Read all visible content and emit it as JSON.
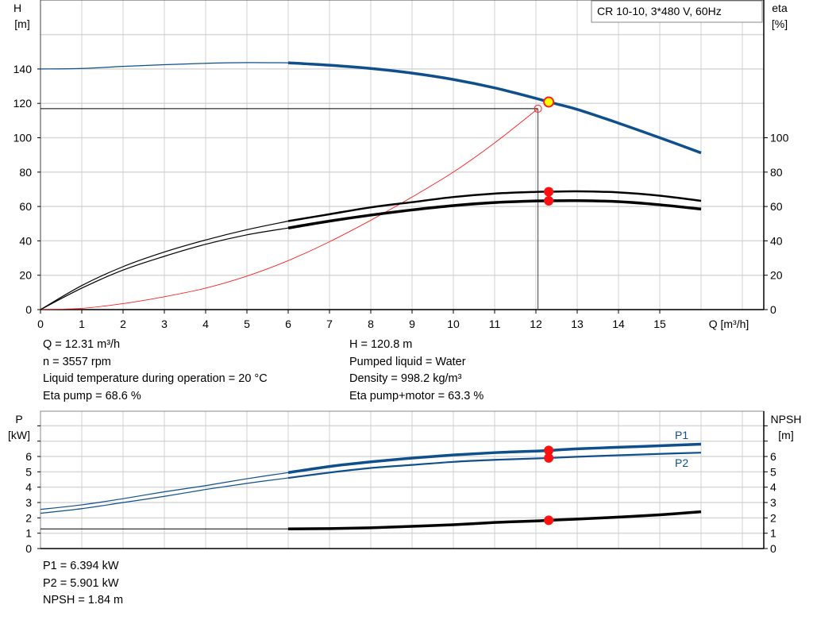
{
  "chart_data": [
    {
      "type": "line",
      "title": "CR 10-10, 3*480 V, 60Hz",
      "xlabel": "Q [m³/h]",
      "ylabel": "H\n[m]",
      "y2label": "eta\n[%]",
      "xlim": [
        0,
        17.5
      ],
      "ylim": [
        0,
        178
      ],
      "grid": true,
      "xticks": [
        0,
        1,
        2,
        3,
        4,
        5,
        6,
        7,
        8,
        9,
        10,
        11,
        12,
        13,
        14,
        15
      ],
      "yticks": [
        0,
        20,
        40,
        60,
        80,
        100,
        120,
        140
      ],
      "y2ticks": [
        0,
        20,
        40,
        60,
        80,
        100
      ],
      "series": [
        {
          "key": "H",
          "axis": "left",
          "color": "#0f4f8c",
          "x": [
            0,
            1,
            2,
            3,
            4,
            5,
            6,
            7,
            8,
            9,
            10,
            11,
            12,
            12.31,
            13,
            14,
            15,
            16
          ],
          "y": [
            140,
            140.3,
            141.5,
            142.5,
            143.3,
            143.7,
            143.6,
            142.2,
            140.3,
            137.6,
            133.9,
            129,
            122.9,
            120.8,
            116.5,
            108.5,
            100,
            91.2
          ]
        },
        {
          "key": "eta_pump",
          "axis": "right",
          "color": "#000000",
          "x": [
            0,
            1,
            2,
            3,
            4,
            5,
            6,
            7,
            8,
            9,
            10,
            11,
            12,
            12.31,
            13,
            14,
            15,
            16
          ],
          "y": [
            0,
            14,
            25,
            33.5,
            40.5,
            46.5,
            51.5,
            55.5,
            59.5,
            62.5,
            65.5,
            67.5,
            68.5,
            68.6,
            68.8,
            68.2,
            66.3,
            63.3
          ]
        },
        {
          "key": "eta_pump_motor",
          "axis": "right",
          "color": "#000000",
          "x": [
            0,
            1,
            2,
            3,
            4,
            5,
            6,
            7,
            8,
            9,
            10,
            11,
            12,
            12.31,
            13,
            14,
            15,
            16
          ],
          "y": [
            0,
            12.5,
            23,
            31,
            38,
            43.5,
            47.5,
            51.5,
            55,
            58,
            60.5,
            62.3,
            63.2,
            63.3,
            63.4,
            62.8,
            61,
            58.5
          ]
        },
        {
          "key": "system",
          "axis": "left",
          "color": "#ff2020",
          "x": [
            0,
            1,
            2,
            3,
            4,
            5,
            6,
            7,
            8,
            9,
            10,
            11,
            12.05
          ],
          "y": [
            0,
            0.7,
            3.5,
            7.5,
            12.5,
            19.5,
            28.5,
            39.5,
            52,
            65.5,
            80,
            97,
            116.9
          ]
        }
      ],
      "duty_point": {
        "Q": 12.31,
        "H": 120.8,
        "eta_pump": 68.6,
        "eta_pump_motor": 63.3
      },
      "system_point": {
        "Q": 12.05,
        "H": 116.9
      }
    },
    {
      "type": "line",
      "xlabel": "",
      "ylabel": "P\n[kW]",
      "y2label": "NPSH\n[m]",
      "xlim": [
        0,
        17.5
      ],
      "ylim": [
        0,
        8.9
      ],
      "grid": true,
      "yticks": [
        0,
        1,
        2,
        3,
        4,
        5,
        6
      ],
      "y2ticks": [
        0,
        1,
        2,
        3,
        4,
        5,
        6
      ],
      "series": [
        {
          "key": "P1",
          "name": "P1",
          "color": "#0f4f8c",
          "x": [
            0,
            1,
            2,
            3,
            4,
            5,
            6,
            7,
            8,
            9,
            10,
            11,
            12,
            12.31,
            13,
            14,
            15,
            16
          ],
          "y": [
            2.55,
            2.85,
            3.25,
            3.7,
            4.1,
            4.55,
            4.95,
            5.35,
            5.65,
            5.9,
            6.1,
            6.25,
            6.35,
            6.394,
            6.5,
            6.6,
            6.7,
            6.8
          ]
        },
        {
          "key": "P2",
          "name": "P2",
          "color": "#0f4f8c",
          "x": [
            0,
            1,
            2,
            3,
            4,
            5,
            6,
            7,
            8,
            9,
            10,
            11,
            12,
            12.31,
            13,
            14,
            15,
            16
          ],
          "y": [
            2.3,
            2.6,
            3.0,
            3.4,
            3.85,
            4.25,
            4.6,
            4.95,
            5.25,
            5.45,
            5.65,
            5.78,
            5.87,
            5.901,
            5.98,
            6.08,
            6.17,
            6.25
          ]
        },
        {
          "key": "NPSH",
          "color": "#000000",
          "x": [
            0,
            6,
            7,
            8,
            9,
            10,
            11,
            12,
            12.31,
            13,
            14,
            15,
            16
          ],
          "y": [
            1.28,
            1.28,
            1.3,
            1.35,
            1.45,
            1.55,
            1.7,
            1.8,
            1.84,
            1.92,
            2.05,
            2.2,
            2.4
          ]
        }
      ],
      "duty_point": {
        "Q": 12.31,
        "P1": 6.394,
        "P2": 5.901,
        "NPSH": 1.84
      }
    }
  ],
  "info_top_left": [
    "Q = 12.31 m³/h",
    "n = 3557 rpm",
    "Liquid temperature during operation = 20 °C",
    "Eta pump = 68.6 %"
  ],
  "info_top_right": [
    "H = 120.8 m",
    "Pumped liquid = Water",
    "Density = 998.2 kg/m³",
    "Eta pump+motor = 63.3 %"
  ],
  "info_bottom": [
    "P1 = 6.394 kW",
    "P2 = 5.901 kW",
    "NPSH = 1.84 m"
  ]
}
